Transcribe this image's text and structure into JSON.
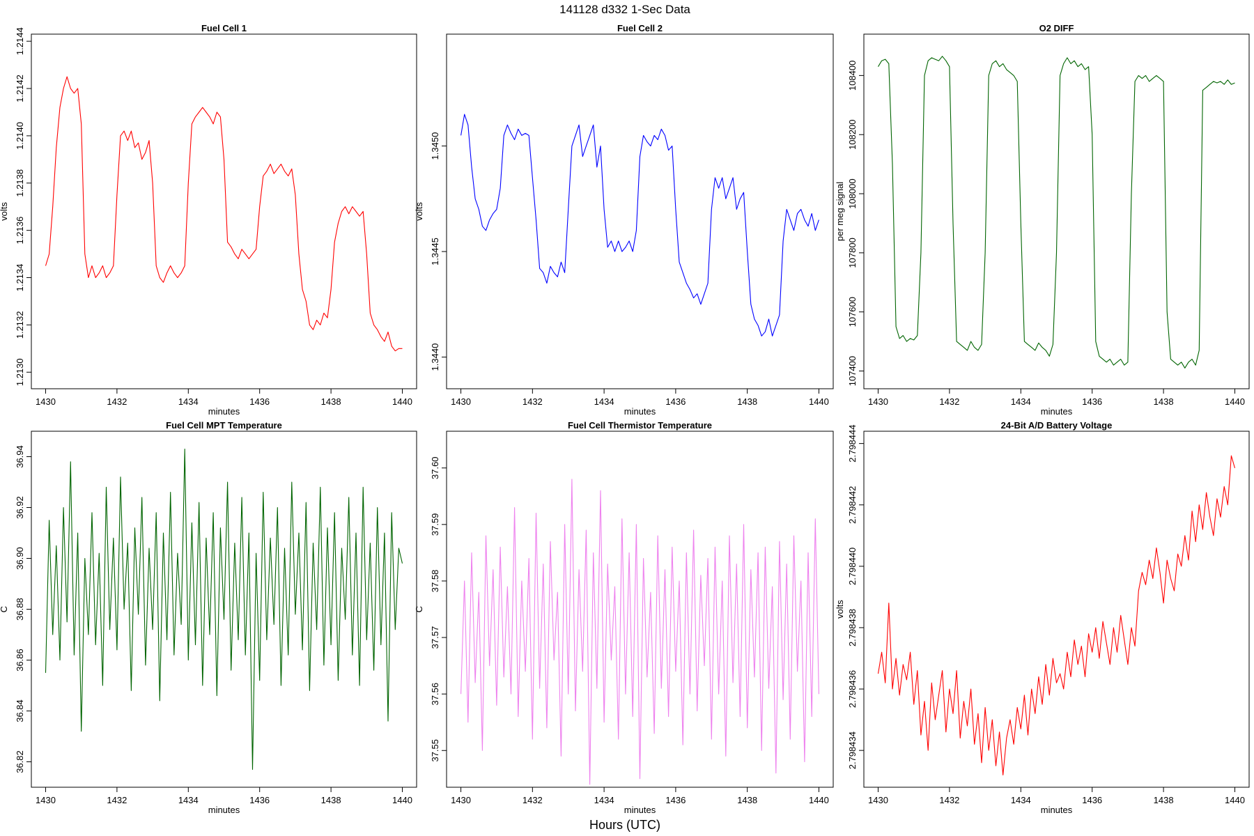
{
  "figure": {
    "title": "141128   d332   1-Sec Data",
    "xlabel": "Hours (UTC)"
  },
  "chart_data": [
    {
      "type": "line",
      "id": "fc1",
      "title": "Fuel Cell 1",
      "xlabel": "minutes",
      "ylabel": "volts",
      "color": "#ff0000",
      "xlim": [
        1429.6,
        1440.4
      ],
      "ylim": [
        1.21293,
        1.21443
      ],
      "xticks": [
        1430,
        1432,
        1434,
        1436,
        1438,
        1440
      ],
      "yticks": [
        1.213,
        1.2132,
        1.2134,
        1.2136,
        1.2138,
        1.214,
        1.2142,
        1.2144
      ],
      "ydecimals": 4,
      "x_start": 1430,
      "x_step": 0.1,
      "series": [
        {
          "name": "Fuel Cell 1",
          "values": [
            1.21345,
            1.2135,
            1.2137,
            1.21395,
            1.21412,
            1.2142,
            1.21425,
            1.2142,
            1.21418,
            1.2142,
            1.21405,
            1.2135,
            1.2134,
            1.21345,
            1.2134,
            1.21342,
            1.21345,
            1.2134,
            1.21342,
            1.21345,
            1.21375,
            1.214,
            1.21402,
            1.21398,
            1.21402,
            1.21395,
            1.21397,
            1.2139,
            1.21393,
            1.21398,
            1.2138,
            1.21345,
            1.2134,
            1.21338,
            1.21342,
            1.21345,
            1.21342,
            1.2134,
            1.21342,
            1.21345,
            1.2138,
            1.21405,
            1.21408,
            1.2141,
            1.21412,
            1.2141,
            1.21408,
            1.21405,
            1.2141,
            1.21408,
            1.2139,
            1.21355,
            1.21353,
            1.2135,
            1.21348,
            1.21352,
            1.2135,
            1.21348,
            1.2135,
            1.21352,
            1.2137,
            1.21383,
            1.21385,
            1.21388,
            1.21384,
            1.21386,
            1.21388,
            1.21385,
            1.21383,
            1.21386,
            1.21375,
            1.2135,
            1.21335,
            1.2133,
            1.2132,
            1.21318,
            1.21322,
            1.2132,
            1.21325,
            1.21323,
            1.21335,
            1.21355,
            1.21363,
            1.21368,
            1.2137,
            1.21367,
            1.2137,
            1.21368,
            1.21366,
            1.21368,
            1.2135,
            1.21325,
            1.2132,
            1.21318,
            1.21315,
            1.21313,
            1.21317,
            1.21311,
            1.21309,
            1.2131,
            1.2131
          ]
        }
      ]
    },
    {
      "type": "line",
      "id": "fc2",
      "title": "Fuel Cell 2",
      "xlabel": "minutes",
      "ylabel": "volts",
      "color": "#0000ff",
      "xlim": [
        1429.6,
        1440.4
      ],
      "ylim": [
        1.34385,
        1.34553
      ],
      "xticks": [
        1430,
        1432,
        1434,
        1436,
        1438,
        1440
      ],
      "yticks": [
        1.344,
        1.3445,
        1.345
      ],
      "ydecimals": 4,
      "x_start": 1430,
      "x_step": 0.1,
      "series": [
        {
          "name": "Fuel Cell 2",
          "values": [
            1.34505,
            1.34515,
            1.3451,
            1.3449,
            1.34475,
            1.3447,
            1.34462,
            1.3446,
            1.34465,
            1.34468,
            1.3447,
            1.3448,
            1.34505,
            1.3451,
            1.34506,
            1.34503,
            1.34508,
            1.34505,
            1.34506,
            1.34505,
            1.34485,
            1.34465,
            1.34442,
            1.3444,
            1.34435,
            1.34443,
            1.3444,
            1.34438,
            1.34445,
            1.3444,
            1.3447,
            1.345,
            1.34505,
            1.3451,
            1.34495,
            1.345,
            1.34505,
            1.3451,
            1.3449,
            1.345,
            1.3447,
            1.34452,
            1.34455,
            1.3445,
            1.34455,
            1.3445,
            1.34452,
            1.34455,
            1.3445,
            1.3446,
            1.34495,
            1.34505,
            1.34502,
            1.345,
            1.34505,
            1.34503,
            1.34508,
            1.34505,
            1.34498,
            1.345,
            1.3447,
            1.34445,
            1.3444,
            1.34435,
            1.34432,
            1.34428,
            1.3443,
            1.34425,
            1.3443,
            1.34435,
            1.3447,
            1.34485,
            1.3448,
            1.34485,
            1.34475,
            1.3448,
            1.34485,
            1.3447,
            1.34475,
            1.34478,
            1.3445,
            1.34425,
            1.34418,
            1.34415,
            1.3441,
            1.34412,
            1.34418,
            1.3441,
            1.34415,
            1.3442,
            1.34455,
            1.3447,
            1.34465,
            1.3446,
            1.34468,
            1.3447,
            1.34465,
            1.34462,
            1.34468,
            1.3446,
            1.34465
          ]
        }
      ]
    },
    {
      "type": "line",
      "id": "o2",
      "title": "O2 DIFF",
      "xlabel": "minutes",
      "ylabel": "per meg signal",
      "color": "#006400",
      "xlim": [
        1429.6,
        1440.4
      ],
      "ylim": [
        107340,
        108540
      ],
      "xticks": [
        1430,
        1432,
        1434,
        1436,
        1438,
        1440
      ],
      "yticks": [
        107400,
        107600,
        107800,
        108000,
        108200,
        108400
      ],
      "ydecimals": 0,
      "x_start": 1430,
      "x_step": 0.1,
      "series": [
        {
          "name": "O2 DIFF",
          "values": [
            108430,
            108450,
            108455,
            108440,
            108100,
            107550,
            107510,
            107520,
            107500,
            107510,
            107505,
            107520,
            107800,
            108400,
            108450,
            108460,
            108455,
            108450,
            108465,
            108450,
            108430,
            107900,
            107500,
            107490,
            107480,
            107470,
            107500,
            107480,
            107470,
            107490,
            107800,
            108400,
            108440,
            108450,
            108430,
            108440,
            108420,
            108410,
            108400,
            108380,
            107900,
            107500,
            107490,
            107480,
            107470,
            107495,
            107480,
            107470,
            107450,
            107490,
            107800,
            108400,
            108440,
            108460,
            108440,
            108450,
            108430,
            108440,
            108420,
            108430,
            108200,
            107500,
            107450,
            107440,
            107430,
            107440,
            107420,
            107430,
            107440,
            107420,
            107430,
            108000,
            108380,
            108400,
            108390,
            108400,
            108380,
            108390,
            108400,
            108390,
            108380,
            107600,
            107440,
            107430,
            107420,
            107430,
            107410,
            107430,
            107440,
            107420,
            107470,
            108350,
            108360,
            108370,
            108380,
            108375,
            108380,
            108370,
            108385,
            108370,
            108375
          ]
        }
      ]
    },
    {
      "type": "line",
      "id": "mpt",
      "title": "Fuel Cell MPT Temperature",
      "xlabel": "minutes",
      "ylabel": "C",
      "color": "#006400",
      "xlim": [
        1429.6,
        1440.4
      ],
      "ylim": [
        36.81,
        36.95
      ],
      "xticks": [
        1430,
        1432,
        1434,
        1436,
        1438,
        1440
      ],
      "yticks": [
        36.82,
        36.84,
        36.86,
        36.88,
        36.9,
        36.92,
        36.94
      ],
      "ydecimals": 2,
      "x_start": 1430,
      "x_step": 0.1,
      "series": [
        {
          "name": "Fuel Cell MPT Temperature",
          "values": [
            36.855,
            36.915,
            36.87,
            36.905,
            36.86,
            36.92,
            36.875,
            36.938,
            36.862,
            36.91,
            36.832,
            36.9,
            36.87,
            36.918,
            36.866,
            36.902,
            36.85,
            36.928,
            36.872,
            36.908,
            36.864,
            36.932,
            36.88,
            36.906,
            36.848,
            36.912,
            36.878,
            36.924,
            36.858,
            36.904,
            36.872,
            36.918,
            36.844,
            36.91,
            36.868,
            36.926,
            36.862,
            36.902,
            36.874,
            36.943,
            36.86,
            36.914,
            36.866,
            36.922,
            36.85,
            36.908,
            36.87,
            36.918,
            36.846,
            36.912,
            36.876,
            36.93,
            36.856,
            36.906,
            36.868,
            36.924,
            36.862,
            36.91,
            36.817,
            36.902,
            36.852,
            36.926,
            36.868,
            36.908,
            36.874,
            36.92,
            36.85,
            36.904,
            36.862,
            36.93,
            36.878,
            36.91,
            36.864,
            36.922,
            36.848,
            36.906,
            36.872,
            36.928,
            36.858,
            36.912,
            36.866,
            36.918,
            36.852,
            36.904,
            36.876,
            36.924,
            36.862,
            36.91,
            36.85,
            36.928,
            36.868,
            36.906,
            36.856,
            36.92,
            36.866,
            36.91,
            36.836,
            36.918,
            36.872,
            36.904,
            36.898
          ]
        }
      ]
    },
    {
      "type": "line",
      "id": "therm",
      "title": "Fuel Cell Thermistor Temperature",
      "xlabel": "minutes",
      "ylabel": "C",
      "color": "#ee82ee",
      "xlim": [
        1429.6,
        1440.4
      ],
      "ylim": [
        37.5435,
        37.6065
      ],
      "xticks": [
        1430,
        1432,
        1434,
        1436,
        1438,
        1440
      ],
      "yticks": [
        37.55,
        37.56,
        37.57,
        37.58,
        37.59,
        37.6
      ],
      "ydecimals": 2,
      "x_start": 1430,
      "x_step": 0.1,
      "series": [
        {
          "name": "Fuel Cell Thermistor Temperature",
          "values": [
            37.56,
            37.58,
            37.555,
            37.585,
            37.562,
            37.578,
            37.55,
            37.588,
            37.565,
            37.582,
            37.558,
            37.586,
            37.563,
            37.579,
            37.56,
            37.593,
            37.556,
            37.58,
            37.564,
            37.584,
            37.552,
            37.592,
            37.561,
            37.583,
            37.554,
            37.587,
            37.566,
            37.578,
            37.549,
            37.59,
            37.56,
            37.598,
            37.557,
            37.582,
            37.564,
            37.589,
            37.544,
            37.585,
            37.561,
            37.596,
            37.555,
            37.583,
            37.566,
            37.579,
            37.552,
            37.591,
            37.56,
            37.585,
            37.556,
            37.59,
            37.545,
            37.584,
            37.563,
            37.578,
            37.553,
            37.588,
            37.561,
            37.582,
            37.556,
            37.586,
            37.564,
            37.58,
            37.551,
            37.585,
            37.56,
            37.589,
            37.557,
            37.581,
            37.565,
            37.584,
            37.552,
            37.586,
            37.56,
            37.58,
            37.549,
            37.588,
            37.562,
            37.583,
            37.556,
            37.59,
            37.554,
            37.582,
            37.563,
            37.585,
            37.55,
            37.586,
            37.561,
            37.579,
            37.546,
            37.587,
            37.559,
            37.583,
            37.552,
            37.588,
            37.564,
            37.58,
            37.548,
            37.585,
            37.556,
            37.591,
            37.56
          ]
        }
      ]
    },
    {
      "type": "line",
      "id": "batt",
      "title": "24-Bit A/D Battery Voltage",
      "xlabel": "minutes",
      "ylabel": "volts",
      "color": "#ff0000",
      "xlim": [
        1429.6,
        1440.4
      ],
      "ylim": [
        2.7984328,
        2.7984444
      ],
      "xticks": [
        1430,
        1432,
        1434,
        1436,
        1438,
        1440
      ],
      "yticks": [
        2.798434,
        2.798436,
        2.798438,
        2.79844,
        2.798442,
        2.798444
      ],
      "ydecimals": 6,
      "x_start": 1430,
      "x_step": 0.1,
      "series": [
        {
          "name": "Batt",
          "values": [
            2.7984365,
            2.7984372,
            2.7984362,
            2.7984388,
            2.798436,
            2.798437,
            2.7984358,
            2.7984368,
            2.7984363,
            2.7984372,
            2.7984355,
            2.7984366,
            2.7984345,
            2.7984356,
            2.798434,
            2.7984362,
            2.798435,
            2.7984358,
            2.7984366,
            2.7984346,
            2.798436,
            2.7984352,
            2.7984366,
            2.7984344,
            2.7984356,
            2.7984348,
            2.798436,
            2.7984342,
            2.7984352,
            2.7984336,
            2.7984354,
            2.798434,
            2.798435,
            2.7984335,
            2.7984346,
            2.7984332,
            2.7984344,
            2.798435,
            2.7984342,
            2.7984354,
            2.7984347,
            2.7984358,
            2.7984345,
            2.798436,
            2.7984352,
            2.7984364,
            2.7984355,
            2.7984368,
            2.7984358,
            2.798437,
            2.7984362,
            2.7984365,
            2.798436,
            2.7984372,
            2.7984364,
            2.7984376,
            2.7984368,
            2.7984374,
            2.7984364,
            2.7984378,
            2.7984372,
            2.798438,
            2.798437,
            2.7984382,
            2.7984375,
            2.7984368,
            2.798438,
            2.7984372,
            2.7984384,
            2.7984376,
            2.7984368,
            2.798438,
            2.7984374,
            2.7984392,
            2.7984398,
            2.7984394,
            2.7984402,
            2.7984396,
            2.7984406,
            2.7984398,
            2.7984388,
            2.7984402,
            2.7984396,
            2.7984392,
            2.7984404,
            2.79844,
            2.798441,
            2.7984402,
            2.7984418,
            2.7984408,
            2.798442,
            2.7984412,
            2.7984424,
            2.7984416,
            2.798441,
            2.7984422,
            2.7984416,
            2.7984426,
            2.798442,
            2.7984436,
            2.7984432
          ]
        }
      ]
    }
  ]
}
